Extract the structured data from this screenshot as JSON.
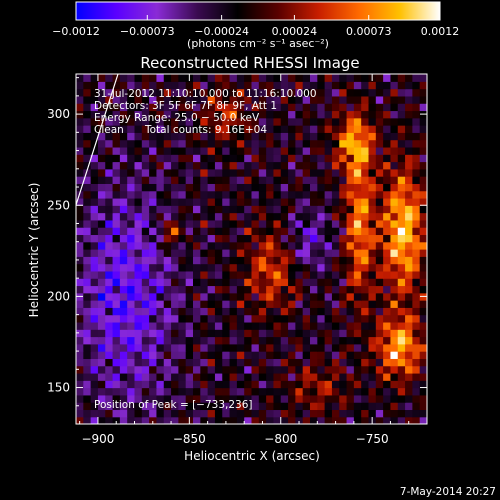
{
  "chart_data": {
    "type": "heatmap",
    "title": "Reconstructed RHESSI Image",
    "xlabel": "Heliocentric X (arcsec)",
    "ylabel": "Heliocentric Y (arcsec)",
    "xlim": [
      -912,
      -720
    ],
    "ylim": [
      130,
      322
    ],
    "x_ticks": [
      -900,
      -850,
      -800,
      -750
    ],
    "x_tick_labels": [
      "−900",
      "−850",
      "−800",
      "−750"
    ],
    "y_ticks": [
      150,
      200,
      250,
      300
    ],
    "y_tick_labels": [
      "150",
      "200",
      "250",
      "300"
    ],
    "colorbar": {
      "min": -0.0012,
      "max": 0.0012,
      "ticks": [
        -0.0012,
        -0.00073,
        -0.00024,
        0.00024,
        0.00073,
        0.0012
      ],
      "tick_labels": [
        "−0.0012",
        "−0.00073",
        "−0.00024",
        "0.00024",
        "0.00073",
        "0.0012"
      ],
      "unit_label": "(photons cm⁻² s⁻¹ asec⁻²)",
      "colors": [
        "#0000ff",
        "#5a00ff",
        "#8a2bd6",
        "#3a0a50",
        "#000000",
        "#5a0000",
        "#c81e00",
        "#ff6a00",
        "#ffc000",
        "#ffffff"
      ]
    },
    "peak": [
      -733,
      236
    ],
    "grid_cells": 48,
    "annotations": {
      "time_range": "31-Jul-2012 11:10:10.000 to 11:16:10.000",
      "detectors": "Detectors: 3F 5F 6F 7F 8F 9F, Att 1",
      "energy_range": "Energy Range: 25.0 − 50.0 keV",
      "method": "Clean",
      "total_counts": "Total counts: 9.16E+04",
      "peak_text": "Position of Peak = [−733,236]"
    }
  },
  "footer_timestamp": "7-May-2014 20:27"
}
